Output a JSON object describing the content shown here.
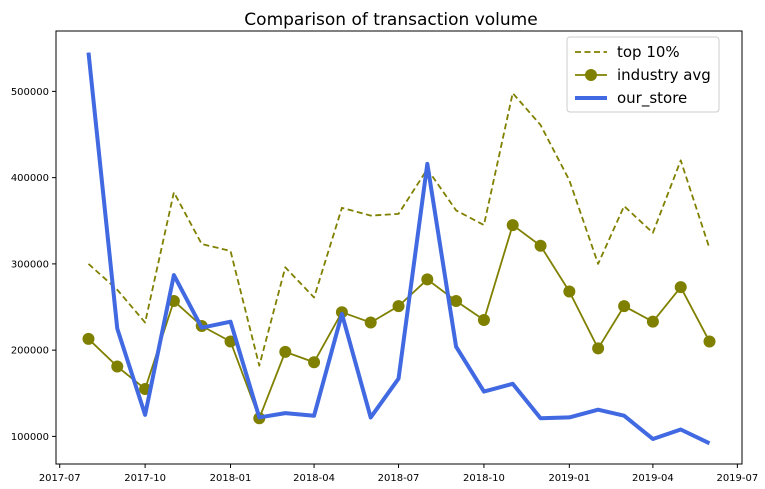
{
  "chart_data": {
    "type": "line",
    "title": "Comparison of transaction volume",
    "xlabel": "",
    "ylabel": "",
    "x": [
      "2017-08-01",
      "2017-09-01",
      "2017-10-01",
      "2017-11-01",
      "2017-12-01",
      "2018-01-01",
      "2018-02-01",
      "2018-03-01",
      "2018-04-01",
      "2018-05-01",
      "2018-06-01",
      "2018-07-01",
      "2018-08-01",
      "2018-09-01",
      "2018-10-01",
      "2018-11-01",
      "2018-12-01",
      "2019-01-01",
      "2019-02-01",
      "2019-03-01",
      "2019-04-01",
      "2019-05-01",
      "2019-06-01"
    ],
    "xlim": [
      "2017-06-27",
      "2019-07-06"
    ],
    "ylim": [
      68000,
      570000
    ],
    "x_ticks": [
      {
        "date": "2017-07-01",
        "label": "2017-07"
      },
      {
        "date": "2017-10-01",
        "label": "2017-10"
      },
      {
        "date": "2018-01-01",
        "label": "2018-01"
      },
      {
        "date": "2018-04-01",
        "label": "2018-04"
      },
      {
        "date": "2018-07-01",
        "label": "2018-07"
      },
      {
        "date": "2018-10-01",
        "label": "2018-10"
      },
      {
        "date": "2019-01-01",
        "label": "2019-01"
      },
      {
        "date": "2019-04-01",
        "label": "2019-04"
      },
      {
        "date": "2019-07-01",
        "label": "2019-07"
      }
    ],
    "y_ticks": [
      {
        "value": 100000,
        "label": "100000"
      },
      {
        "value": 200000,
        "label": "200000"
      },
      {
        "value": 300000,
        "label": "300000"
      },
      {
        "value": 400000,
        "label": "400000"
      },
      {
        "value": 500000,
        "label": "500000"
      }
    ],
    "grid": false,
    "legend": "top-right",
    "series": [
      {
        "name": "top 10%",
        "style": "dashed",
        "marker": "none",
        "color": "#808000",
        "values": [
          300000,
          270000,
          232000,
          383000,
          323000,
          315000,
          182000,
          296000,
          261000,
          365000,
          356000,
          358000,
          410000,
          362000,
          345000,
          498000,
          461000,
          397000,
          300000,
          367000,
          336000,
          420000,
          318000
        ]
      },
      {
        "name": "industry avg",
        "style": "solid",
        "marker": "circle",
        "color": "#808000",
        "values": [
          213000,
          181000,
          155000,
          257000,
          228000,
          210000,
          121000,
          198000,
          186000,
          244000,
          232000,
          251000,
          282000,
          257000,
          235000,
          345000,
          321000,
          268000,
          202000,
          251000,
          233000,
          273000,
          210000
        ]
      },
      {
        "name": "our_store",
        "style": "solid",
        "marker": "none",
        "color": "#4169e1",
        "values": [
          545000,
          225000,
          125000,
          287000,
          226000,
          233000,
          122000,
          127000,
          124000,
          242000,
          122000,
          167000,
          416000,
          204000,
          152000,
          161000,
          121000,
          122000,
          131000,
          124000,
          97000,
          108000,
          92000
        ]
      }
    ]
  }
}
